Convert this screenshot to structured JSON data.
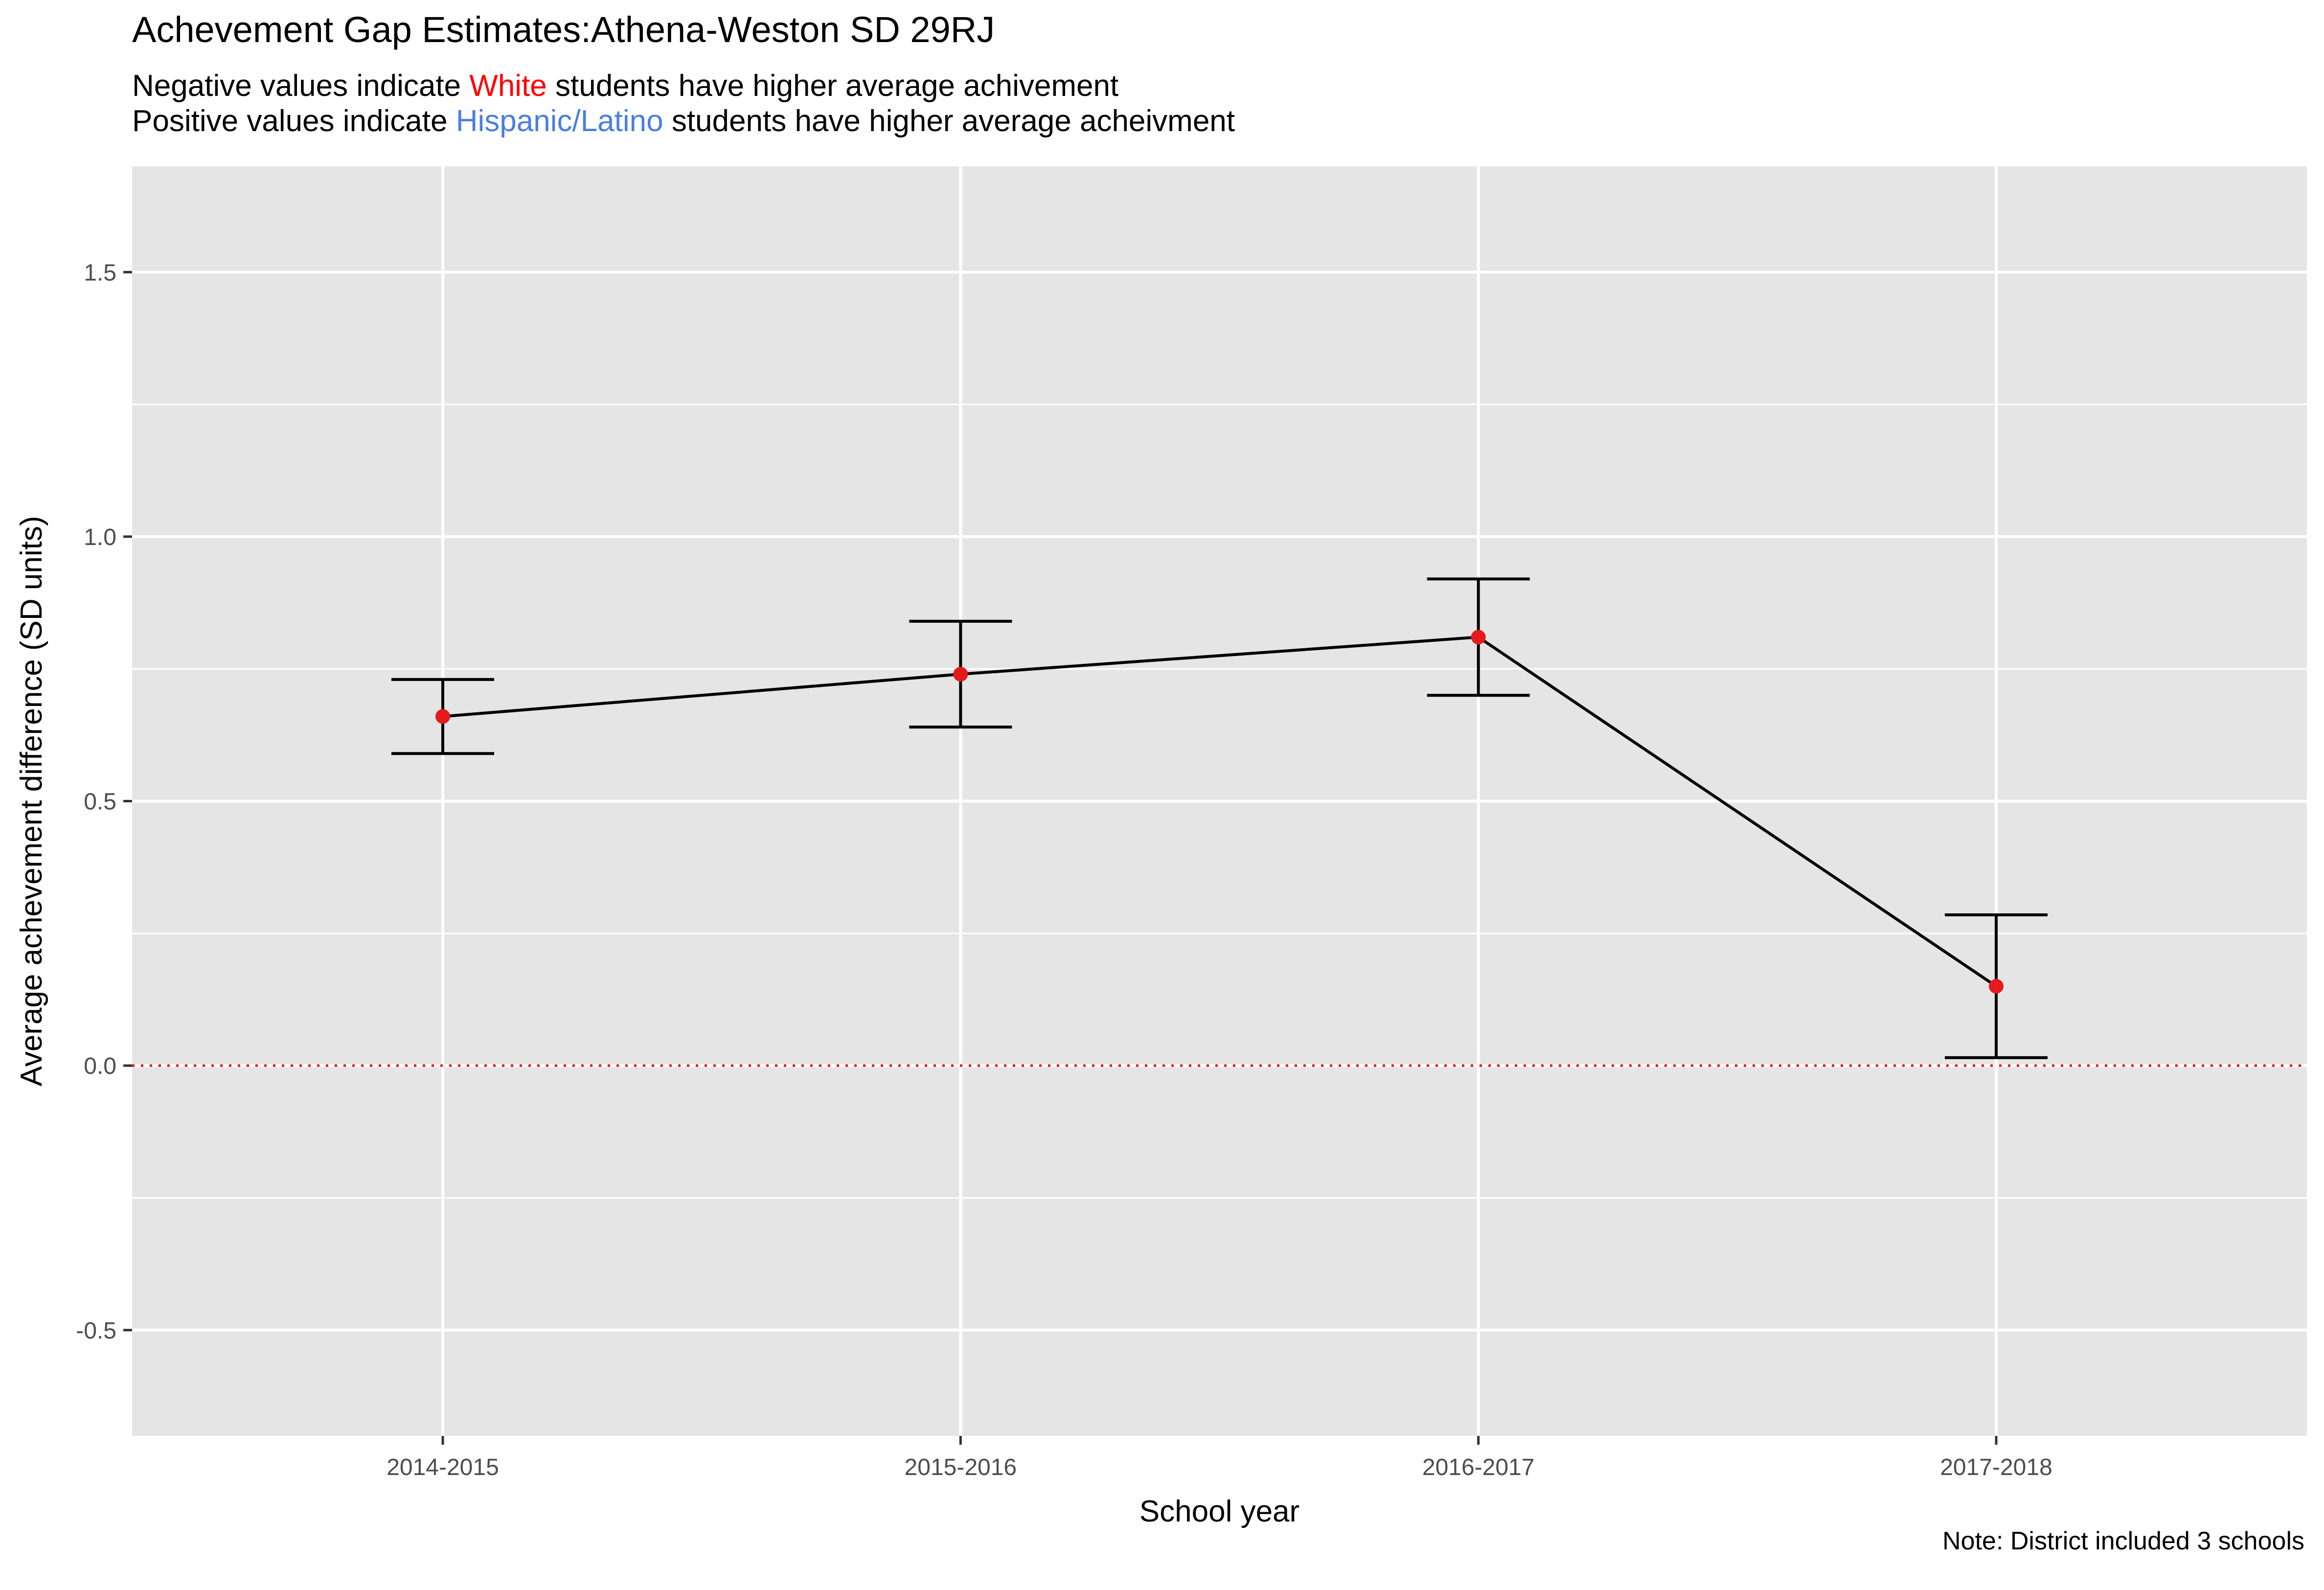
{
  "header": {
    "title": "Achevement Gap Estimates:Athena-Weston SD 29RJ",
    "subtitle_line1": {
      "prefix": "Negative values indicate ",
      "highlight": "White",
      "suffix": " students have higher average achivement"
    },
    "subtitle_line2": {
      "prefix": "Positive values indicate ",
      "highlight": "Hispanic/Latino",
      "suffix": " students have higher average acheivment"
    }
  },
  "caption": "Note: District included 3 schools",
  "colors": {
    "panel_bg": "#e5e5e5",
    "grid": "#ffffff",
    "line": "#000000",
    "point": "#e41a1c",
    "reference_line": "#ff0000",
    "white_highlight": "#ff0000",
    "hispanic_highlight": "#4a7fdc"
  },
  "chart_data": {
    "type": "line",
    "xlabel": "School year",
    "ylabel": "Average achevement difference (SD units)",
    "categories": [
      "2014-2015",
      "2015-2016",
      "2016-2017",
      "2017-2018"
    ],
    "values": [
      0.66,
      0.74,
      0.81,
      0.15
    ],
    "lower": [
      0.59,
      0.64,
      0.7,
      0.015
    ],
    "upper": [
      0.73,
      0.84,
      0.92,
      0.285
    ],
    "ylim": [
      -0.7,
      1.7
    ],
    "y_ticks": [
      -0.5,
      0.0,
      0.5,
      1.0,
      1.5
    ],
    "y_tick_labels": [
      "-0.5",
      "0.0",
      "0.5",
      "1.0",
      "1.5"
    ],
    "reference_line": {
      "y": 0,
      "style": "dotted"
    },
    "grid": true,
    "legend": "none"
  }
}
